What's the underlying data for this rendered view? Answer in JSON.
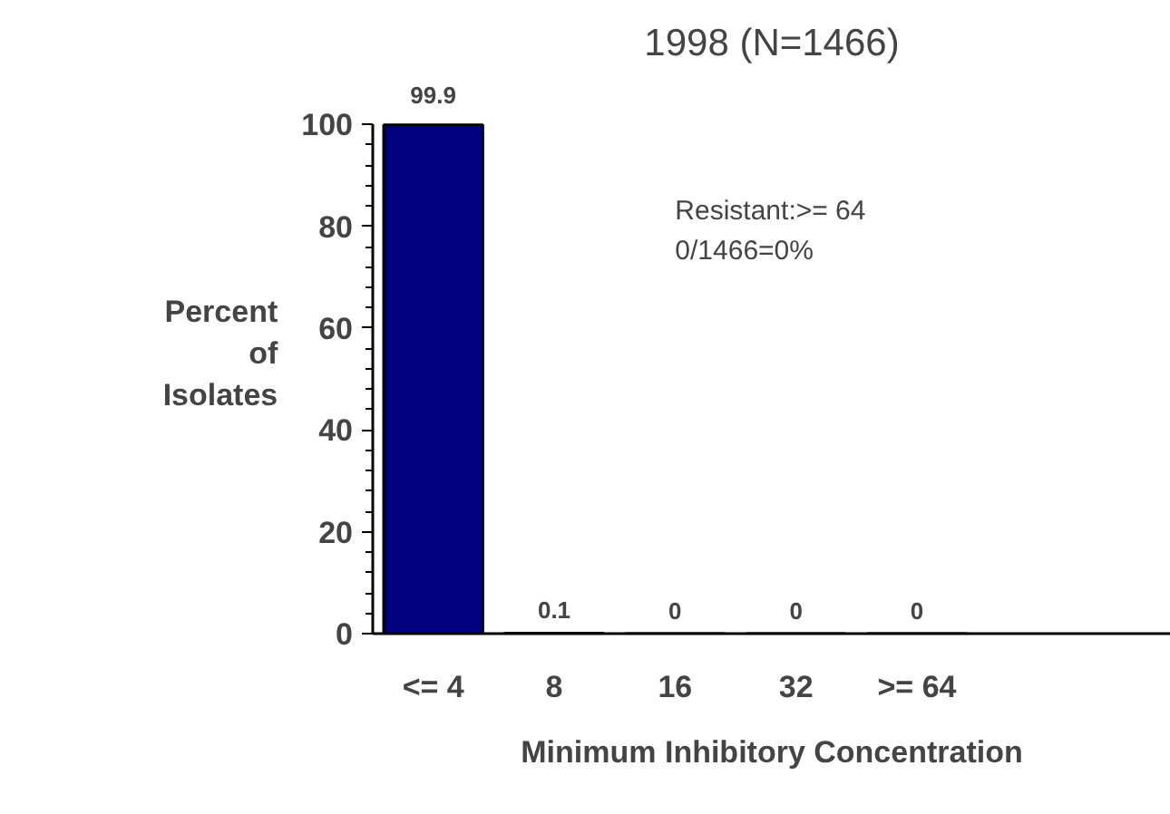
{
  "chart_data": {
    "type": "bar",
    "title": "1998 (N=1466)",
    "xlabel": "Minimum Inhibitory Concentration",
    "ylabel": "Percent\nof\nIsolates",
    "categories": [
      "<= 4",
      "8",
      "16",
      "32",
      ">= 64"
    ],
    "values": [
      99.9,
      0.1,
      0,
      0,
      0
    ],
    "color": "#000080",
    "data_labels": true,
    "ylim": [
      0,
      100
    ],
    "yticks": [
      0,
      20,
      40,
      60,
      80,
      100
    ],
    "grid": false,
    "annotations": [
      "Resistant:>= 64\n0/1466=0%"
    ]
  }
}
